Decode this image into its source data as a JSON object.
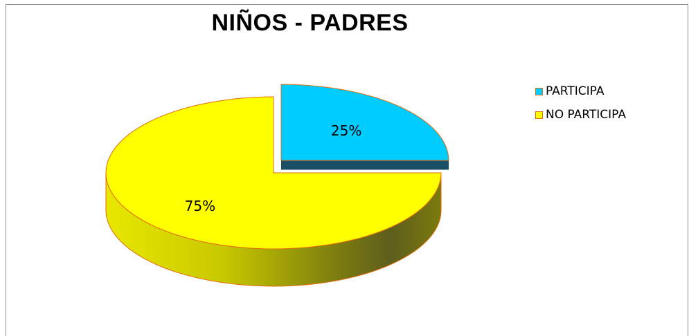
{
  "chart_data": {
    "type": "pie",
    "title": "NIÑOS - PADRES",
    "categories": [
      "PARTICIPA",
      "NO PARTICIPA"
    ],
    "values": [
      25,
      75
    ],
    "labels": [
      "25%",
      "75%"
    ],
    "colors": [
      "#00ccff",
      "#ffff00"
    ],
    "edge_color": "#e36c0a",
    "style": "3d-exploded-slice",
    "legend_position": "right"
  }
}
